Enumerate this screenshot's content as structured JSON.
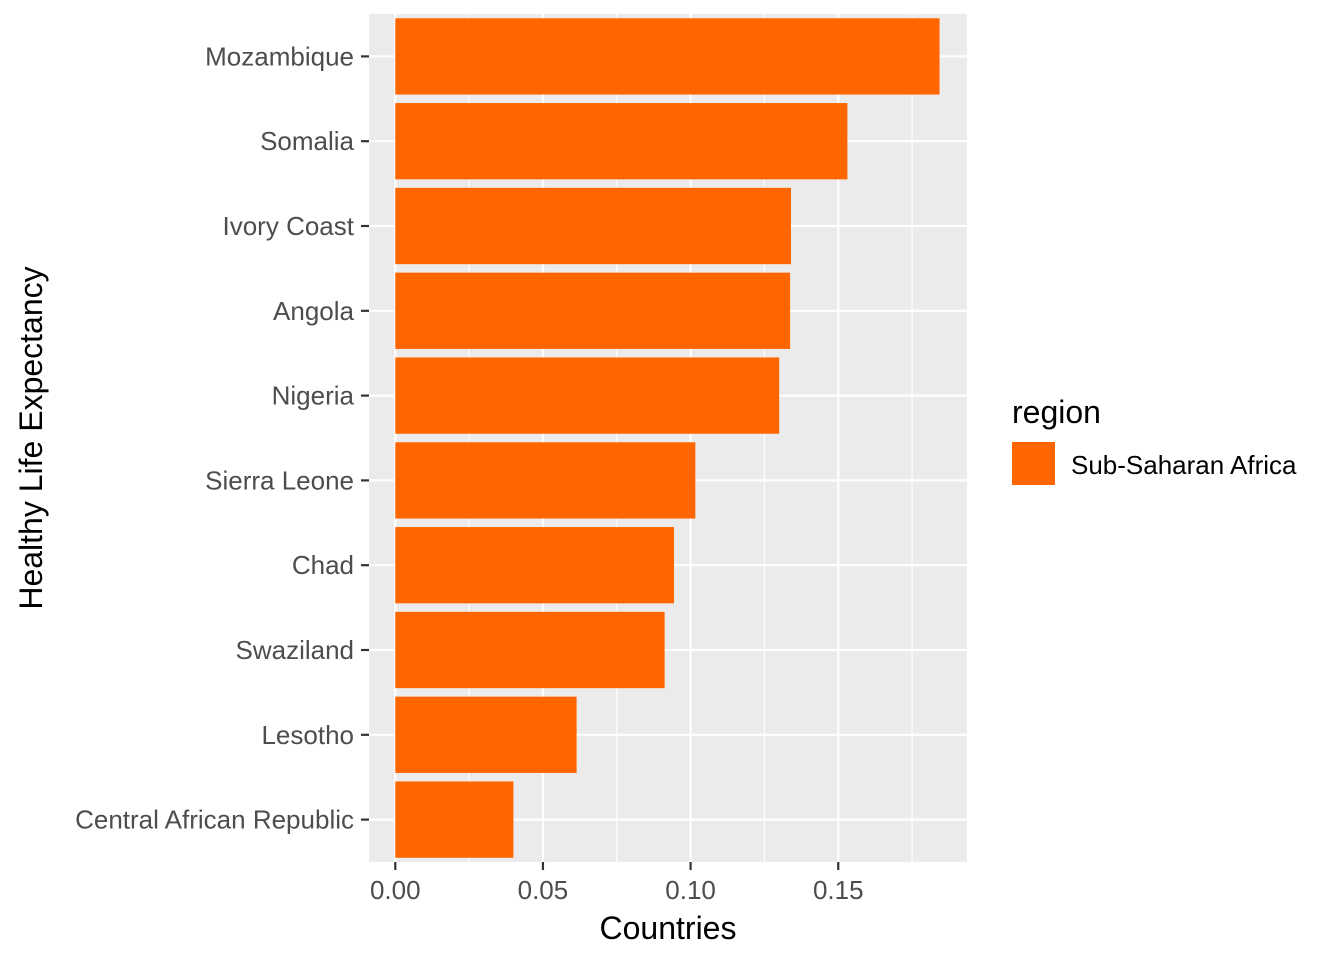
{
  "chart_data": {
    "type": "bar",
    "orientation": "horizontal",
    "categories": [
      "Mozambique",
      "Somalia",
      "Ivory Coast",
      "Angola",
      "Nigeria",
      "Sierra Leone",
      "Chad",
      "Swaziland",
      "Lesotho",
      "Central African Republic"
    ],
    "values": [
      0.1843,
      0.1531,
      0.134,
      0.1337,
      0.13,
      0.1016,
      0.0944,
      0.0912,
      0.0614,
      0.04
    ],
    "xlabel": "Countries",
    "ylabel": "Healthy Life Expectancy",
    "xlim": [
      -0.0089,
      0.1936
    ],
    "x_ticks": [
      0.0,
      0.05,
      0.1,
      0.15
    ],
    "x_tick_labels": [
      "0.00",
      "0.05",
      "0.10",
      "0.15"
    ],
    "grid": true,
    "legend": {
      "title": "region",
      "entries": [
        {
          "label": "Sub-Saharan Africa",
          "color": "#FF6600"
        }
      ],
      "placement": "right"
    },
    "bar_color": "#FF6600",
    "panel_background": "#EBEBEB"
  }
}
